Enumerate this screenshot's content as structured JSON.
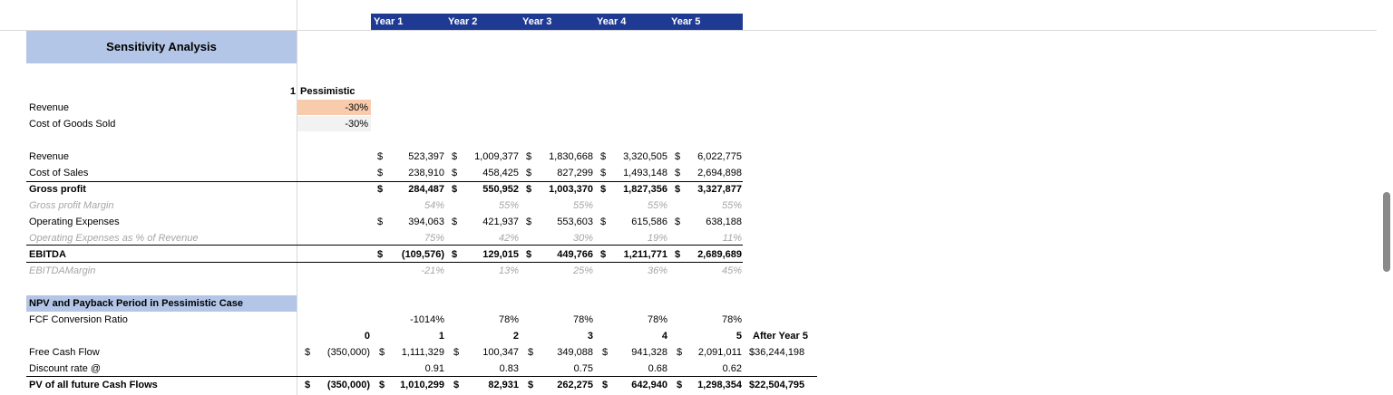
{
  "years_header": [
    "Year 1",
    "Year 2",
    "Year 3",
    "Year 4",
    "Year 5"
  ],
  "title": "Sensitivity Analysis",
  "scenario": {
    "number": "1",
    "name": "Pessimistic"
  },
  "assumptions": [
    {
      "label": "Revenue",
      "value": "-30%"
    },
    {
      "label": "Cost of Goods Sold",
      "value": "-30%"
    }
  ],
  "pl": {
    "revenue": {
      "label": "Revenue",
      "values": [
        "523,397",
        "1,009,377",
        "1,830,668",
        "3,320,505",
        "6,022,775"
      ]
    },
    "cost_of_sales": {
      "label": "Cost of Sales",
      "values": [
        "238,910",
        "458,425",
        "827,299",
        "1,493,148",
        "2,694,898"
      ]
    },
    "gross_profit": {
      "label": "Gross profit",
      "values": [
        "284,487",
        "550,952",
        "1,003,370",
        "1,827,356",
        "3,327,877"
      ]
    },
    "gross_margin": {
      "label": "Gross profit Margin",
      "values": [
        "54%",
        "55%",
        "55%",
        "55%",
        "55%"
      ]
    },
    "opex": {
      "label": "Operating Expenses",
      "values": [
        "394,063",
        "421,937",
        "553,603",
        "615,586",
        "638,188"
      ]
    },
    "opex_pct": {
      "label": "Operating Expenses as % of Revenue",
      "values": [
        "75%",
        "42%",
        "30%",
        "19%",
        "11%"
      ]
    },
    "ebitda": {
      "label": "EBITDA",
      "values": [
        "(109,576)",
        "129,015",
        "449,766",
        "1,211,771",
        "2,689,689"
      ]
    },
    "ebitda_margin": {
      "label": "EBITDAMargin",
      "values": [
        "-21%",
        "13%",
        "25%",
        "36%",
        "45%"
      ]
    }
  },
  "npv": {
    "title": "NPV and Payback Period in Pessimistic Case",
    "fcf_ratio": {
      "label": "FCF Conversion Ratio",
      "values": [
        "-1014%",
        "78%",
        "78%",
        "78%",
        "78%"
      ]
    },
    "periods": [
      "0",
      "1",
      "2",
      "3",
      "4",
      "5"
    ],
    "after_label": "After Year 5",
    "fcf": {
      "label": "Free Cash Flow",
      "values": [
        "(350,000)",
        "1,111,329",
        "100,347",
        "349,088",
        "941,328",
        "2,091,011"
      ],
      "after": "$36,244,198"
    },
    "discount": {
      "label": "Discount rate @",
      "values": [
        "0.91",
        "0.83",
        "0.75",
        "0.68",
        "0.62"
      ]
    },
    "pv": {
      "label": "PV of all future Cash Flows",
      "values": [
        "(350,000)",
        "1,010,299",
        "82,931",
        "262,275",
        "642,940",
        "1,298,354"
      ],
      "after": "$22,504,795"
    }
  },
  "colors": {
    "header_navy": "#1f3a93",
    "title_blue": "#b4c6e7",
    "input_orange": "#f8cbad",
    "input_gray": "#f2f2f2"
  }
}
